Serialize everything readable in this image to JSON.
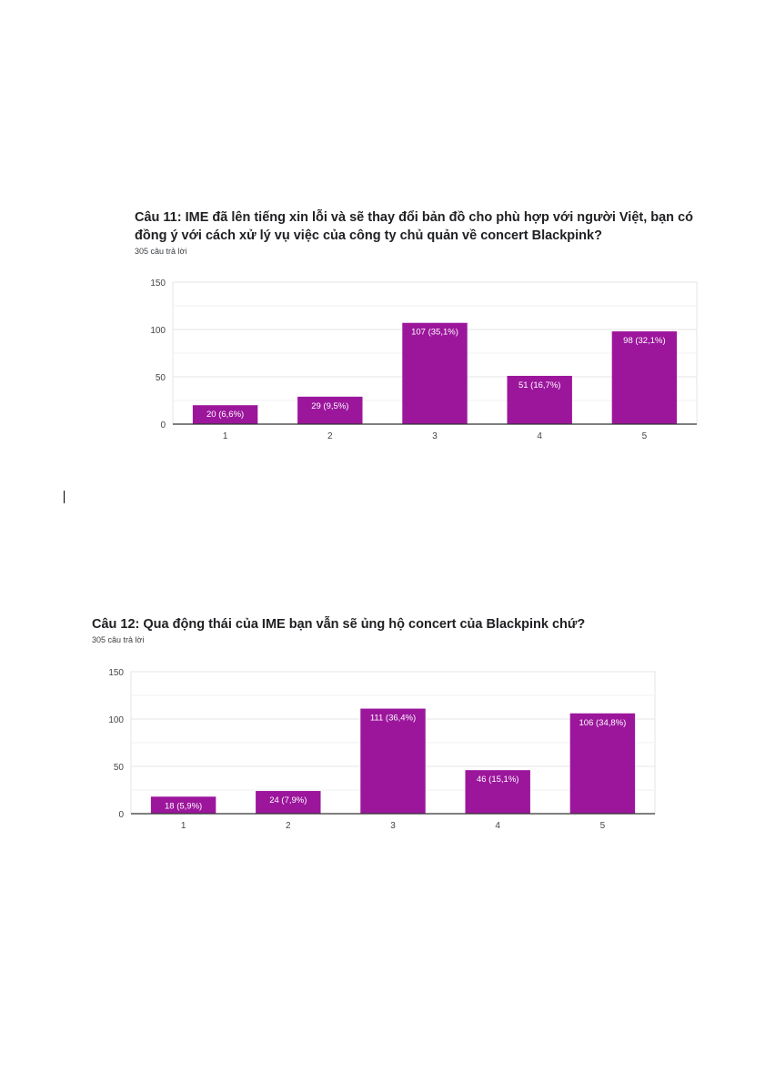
{
  "colors": {
    "bar": "#9c169c",
    "grid": "#e4e4e4",
    "axis": "#333333",
    "tick_text": "#444444",
    "label_text": "#ffffff"
  },
  "chart_data": [
    {
      "type": "bar",
      "title": "Câu 11: IME đã lên tiếng xin lỗi và sẽ thay đổi bản đồ cho phù hợp với người Việt, bạn có đồng ý với cách xử lý vụ việc của công ty chủ quản về concert Blackpink?",
      "subtitle": "305 câu trả lời",
      "categories": [
        "1",
        "2",
        "3",
        "4",
        "5"
      ],
      "values": [
        20,
        29,
        107,
        51,
        98
      ],
      "data_labels": [
        "20 (6,6%)",
        "29 (9,5%)",
        "107 (35,1%)",
        "51 (16,7%)",
        "98 (32,1%)"
      ],
      "yticks": [
        "0",
        "50",
        "100",
        "150"
      ],
      "ylim": [
        0,
        150
      ],
      "grid": true,
      "legend": "none"
    },
    {
      "type": "bar",
      "title": "Câu 12: Qua động thái của IME bạn vẫn sẽ ủng hộ concert của Blackpink chứ?",
      "subtitle": "305 câu trả lời",
      "categories": [
        "1",
        "2",
        "3",
        "4",
        "5"
      ],
      "values": [
        18,
        24,
        111,
        46,
        106
      ],
      "data_labels": [
        "18 (5,9%)",
        "24 (7,9%)",
        "111 (36,4%)",
        "46 (15,1%)",
        "106 (34,8%)"
      ],
      "yticks": [
        "0",
        "50",
        "100",
        "150"
      ],
      "ylim": [
        0,
        150
      ],
      "grid": true,
      "legend": "none"
    }
  ]
}
